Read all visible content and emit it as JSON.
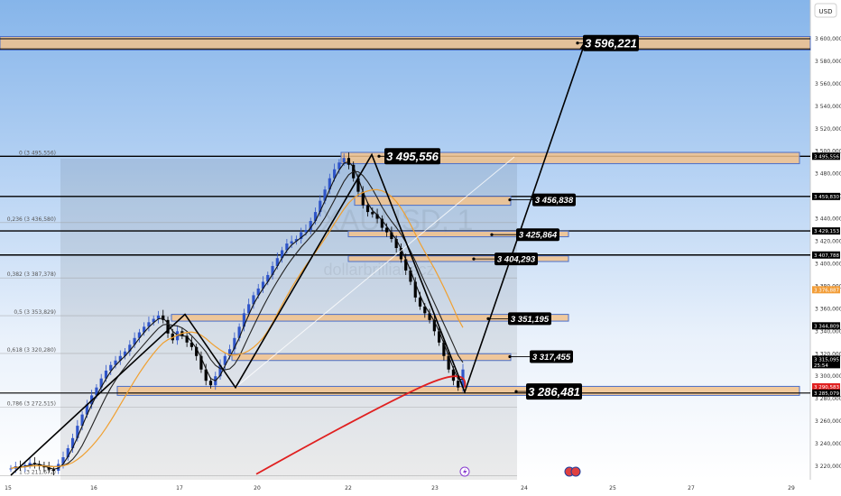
{
  "currency_label": "USD",
  "watermark": {
    "symbol": "XAUUSD, 1",
    "site": "dollarbrillianscz"
  },
  "colors": {
    "bg_top": "#8cb9ec",
    "bg_bottom": "#ffffff",
    "zone_fill": "#f2c28c",
    "zone_stroke": "#4a6fc9",
    "candle_up": "#2f55c9",
    "candle_down": "#000000",
    "ma_fast": "#111111",
    "ma_mid": "#222222",
    "ma_orange": "#f0a030",
    "ma_red": "#e02020",
    "last_price_tag": "#f29d38",
    "current_price_tag": "#e02020"
  },
  "y_axis_ticks": [
    "3 600,000",
    "3 580,000",
    "3 560,000",
    "3 540,000",
    "3 520,000",
    "3 500,000",
    "3 480,000",
    "3 460,000",
    "3 440,000",
    "3 420,000",
    "3 400,000",
    "3 380,000",
    "3 360,000",
    "3 340,000",
    "3 320,000",
    "3 300,000",
    "3 280,000",
    "3 260,000",
    "3 240,000",
    "3 220,000"
  ],
  "x_axis_ticks": [
    "15",
    "16",
    "17",
    "20",
    "22",
    "23",
    "24",
    "25",
    "27",
    "29"
  ],
  "fib_labels": [
    {
      "text": "0 (3 495,556)",
      "price": 3495.556
    },
    {
      "text": "0,236 (3 436,580)",
      "price": 3436.58
    },
    {
      "text": "0,382 (3 387,378)",
      "price": 3387.378
    },
    {
      "text": "0,5 (3 353,829)",
      "price": 3353.829
    },
    {
      "text": "0,618 (3 320,280)",
      "price": 3320.28
    },
    {
      "text": "0,786 (3 272,515)",
      "price": 3272.515
    },
    {
      "text": "1 (3 211,672)",
      "price": 3211.672
    }
  ],
  "callouts": [
    {
      "text": "3 596,221",
      "price": 3596.221,
      "size": "large"
    },
    {
      "text": "3 495,556",
      "price": 3495.556,
      "size": "large"
    },
    {
      "text": "3 456,838",
      "price": 3456.838,
      "size": "small"
    },
    {
      "text": "3 425,864",
      "price": 3425.864,
      "size": "small"
    },
    {
      "text": "3 404,293",
      "price": 3404.293,
      "size": "small"
    },
    {
      "text": "3 351,195",
      "price": 3351.195,
      "size": "small"
    },
    {
      "text": "3 317,455",
      "price": 3317.455,
      "size": "small"
    },
    {
      "text": "3 286,481",
      "price": 3286.481,
      "size": "large"
    }
  ],
  "axis_tags": [
    {
      "text": "3 495,556",
      "price": 3495.556,
      "style": "black"
    },
    {
      "text": "3 459,830",
      "price": 3459.83,
      "style": "black"
    },
    {
      "text": "3 429,153",
      "price": 3429.153,
      "style": "black"
    },
    {
      "text": "3 407,788",
      "price": 3407.788,
      "style": "black"
    },
    {
      "text": "3 376,887",
      "price": 3376.887,
      "style": "orange"
    },
    {
      "text": "3 344,809",
      "price": 3344.809,
      "style": "black"
    },
    {
      "text": "3 315,095",
      "sub": "25:54",
      "price": 3315.095,
      "style": "black"
    },
    {
      "text": "3 290,583",
      "price": 3290.583,
      "style": "red"
    },
    {
      "text": "3 285,079",
      "price": 3285.079,
      "style": "black"
    }
  ],
  "chart_data": {
    "type": "candlestick",
    "instrument": "XAUUSD",
    "timeframe": "1",
    "ylim": [
      3210,
      3610
    ],
    "y_unit": "USD",
    "horizontal_levels": [
      3596.221,
      3495.556,
      3459.83,
      3429.153,
      3407.788
    ],
    "zones": [
      {
        "from": 3590,
        "to": 3602
      },
      {
        "from": 3489,
        "to": 3499
      },
      {
        "from": 3452,
        "to": 3460
      },
      {
        "from": 3424,
        "to": 3429
      },
      {
        "from": 3402,
        "to": 3407
      },
      {
        "from": 3349,
        "to": 3355
      },
      {
        "from": 3314,
        "to": 3320
      },
      {
        "from": 3283,
        "to": 3291
      }
    ],
    "projection_path": [
      3212,
      3355,
      3290,
      3497,
      3286,
      3596
    ],
    "close_series": [
      3218,
      3220,
      3219,
      3221,
      3223,
      3222,
      3220,
      3219,
      3217,
      3216,
      3222,
      3228,
      3236,
      3245,
      3256,
      3266,
      3275,
      3283,
      3290,
      3298,
      3305,
      3310,
      3314,
      3318,
      3322,
      3328,
      3334,
      3339,
      3344,
      3348,
      3351,
      3354,
      3350,
      3338,
      3332,
      3340,
      3336,
      3330,
      3326,
      3318,
      3306,
      3296,
      3292,
      3300,
      3310,
      3318,
      3324,
      3334,
      3344,
      3356,
      3364,
      3372,
      3378,
      3384,
      3390,
      3398,
      3405,
      3412,
      3418,
      3420,
      3422,
      3428,
      3430,
      3438,
      3446,
      3456,
      3466,
      3476,
      3484,
      3490,
      3494,
      3488,
      3476,
      3464,
      3452,
      3446,
      3444,
      3440,
      3432,
      3428,
      3422,
      3414,
      3404,
      3394,
      3384,
      3370,
      3362,
      3356,
      3350,
      3340,
      3330,
      3318,
      3306,
      3296,
      3290,
      3306
    ]
  }
}
